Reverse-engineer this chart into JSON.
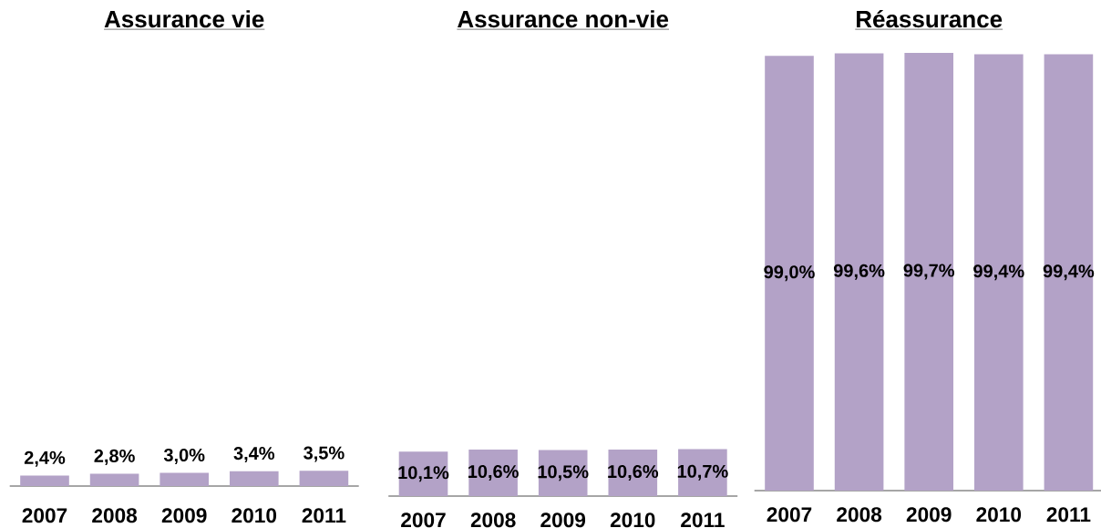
{
  "chart_data": [
    {
      "type": "bar",
      "title": "Assurance vie",
      "categories": [
        "2007",
        "2008",
        "2009",
        "2010",
        "2011"
      ],
      "values": [
        2.4,
        2.8,
        3.0,
        3.4,
        3.5
      ],
      "value_labels": [
        "2,4%",
        "2,8%",
        "3,0%",
        "3,4%",
        "3,5%"
      ],
      "color": "#b3a2c7",
      "tick_labels": "x"
    },
    {
      "type": "bar",
      "title": "Assurance non-vie",
      "categories": [
        "2007",
        "2008",
        "2009",
        "2010",
        "2011"
      ],
      "values": [
        10.1,
        10.6,
        10.5,
        10.6,
        10.7
      ],
      "value_labels": [
        "10,1%",
        "10,6%",
        "10,5%",
        "10,6%",
        "10,7%"
      ],
      "color": "#b3a2c7",
      "tick_labels": "x"
    },
    {
      "type": "bar",
      "title": "Réassurance",
      "categories": [
        "2007",
        "2008",
        "2009",
        "2010",
        "2011"
      ],
      "values": [
        99.0,
        99.6,
        99.7,
        99.4,
        99.4
      ],
      "value_labels": [
        "99,0%",
        "99,6%",
        "99,7%",
        "99,4%",
        "99,4%"
      ],
      "color": "#b3a2c7",
      "tick_labels": "x"
    }
  ]
}
